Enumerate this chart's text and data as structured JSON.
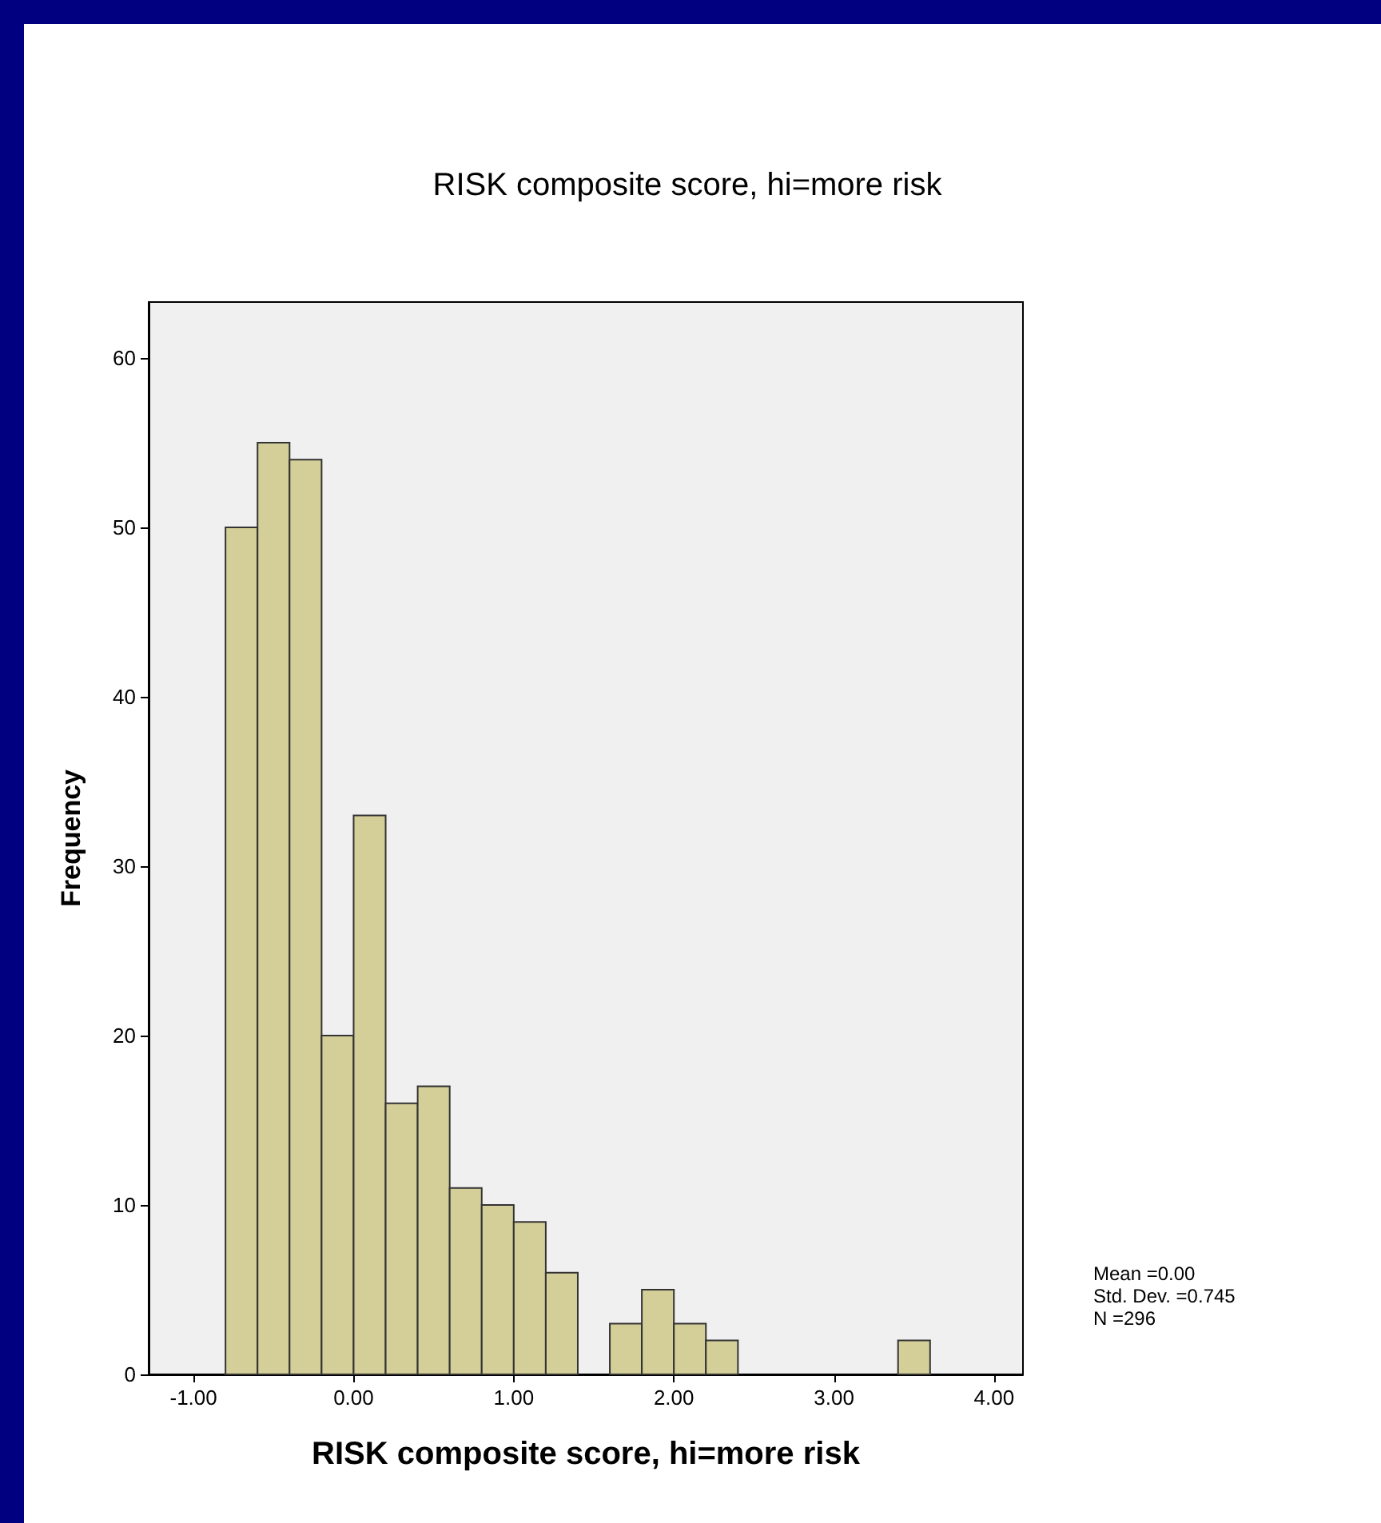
{
  "chart_data": {
    "type": "histogram",
    "title": "RISK composite score, hi=more risk",
    "xlabel": "RISK composite score, hi=more risk",
    "ylabel": "Frequency",
    "bins": [
      -0.8,
      -0.6,
      -0.4,
      -0.2,
      0,
      0.2,
      0.4,
      0.6,
      0.8,
      1.0,
      1.2,
      1.4,
      1.6,
      1.8,
      2.0,
      2.2,
      2.4,
      2.6,
      2.8,
      3.0,
      3.2,
      3.4,
      3.6
    ],
    "values": [
      50,
      55,
      54,
      20,
      33,
      16,
      17,
      11,
      10,
      9,
      6,
      0,
      3,
      5,
      3,
      2,
      0,
      0,
      0,
      0,
      0,
      2
    ],
    "color": "#d4cf98",
    "xlim": [
      -1.28,
      4.18
    ],
    "xticks": [
      {
        "value": -1,
        "label": "-1.00"
      },
      {
        "value": 0,
        "label": "0.00"
      },
      {
        "value": 1,
        "label": "1.00"
      },
      {
        "value": 2,
        "label": "2.00"
      },
      {
        "value": 3,
        "label": "3.00"
      },
      {
        "value": 4,
        "label": "4.00"
      }
    ],
    "ylim": [
      0,
      63.3
    ],
    "yticks": [
      0,
      10,
      20,
      30,
      40,
      50,
      60
    ],
    "grid": false,
    "annotations": [
      "Mean =0.00",
      "Std. Dev. =0.745",
      "N =296"
    ]
  }
}
